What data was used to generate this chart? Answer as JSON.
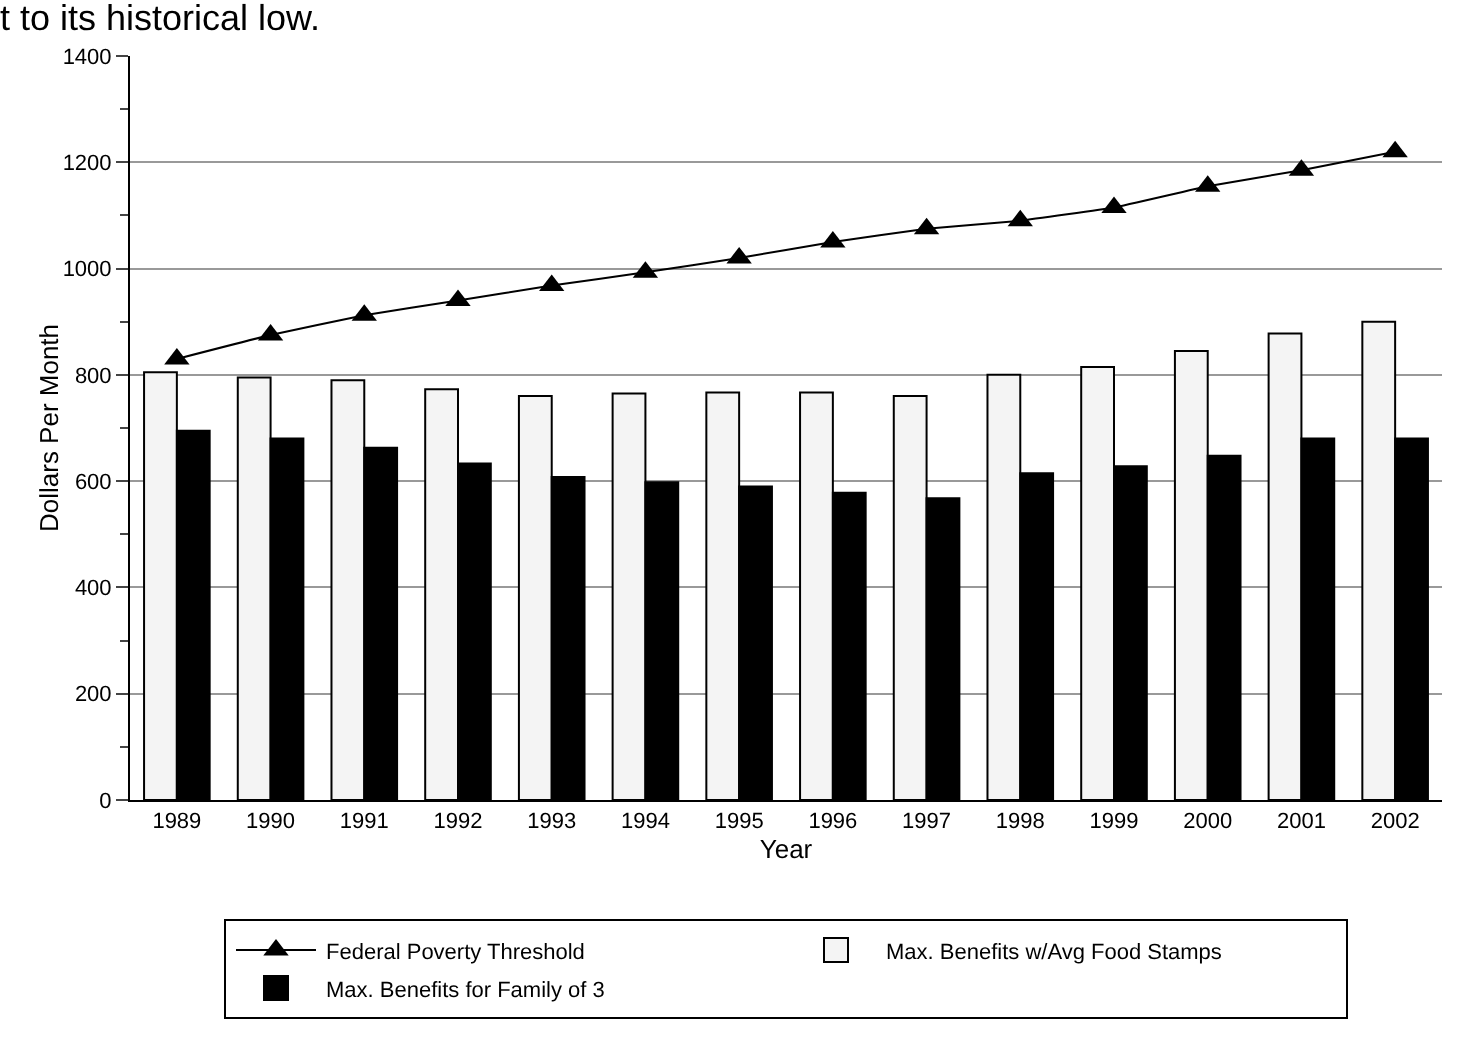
{
  "chart_data": {
    "type": "bar",
    "title": "t to its historical low.",
    "xlabel": "Year",
    "ylabel": "Dollars Per Month",
    "categories": [
      "1989",
      "1990",
      "1991",
      "1992",
      "1993",
      "1994",
      "1995",
      "1996",
      "1997",
      "1998",
      "1999",
      "2000",
      "2001",
      "2002"
    ],
    "series": [
      {
        "name": "Federal Poverty Threshold",
        "type": "line",
        "color": "#000000",
        "marker": "triangle",
        "values": [
          830,
          875,
          912,
          940,
          968,
          993,
          1020,
          1050,
          1075,
          1090,
          1115,
          1155,
          1185,
          1220
        ]
      },
      {
        "name": "Max. Benefits w/Avg Food Stamps",
        "color": "#f4f4f4",
        "values": [
          805,
          795,
          790,
          773,
          760,
          765,
          767,
          767,
          760,
          800,
          815,
          845,
          878,
          900
        ]
      },
      {
        "name": "Max. Benefits for Family of 3",
        "color": "#000000",
        "values": [
          695,
          680,
          663,
          633,
          608,
          598,
          590,
          578,
          568,
          615,
          628,
          648,
          680,
          680
        ]
      }
    ],
    "ylim": [
      0,
      1400
    ],
    "yticks": [
      0,
      200,
      400,
      600,
      800,
      1000,
      1200,
      1400
    ],
    "grid": "y",
    "legend": "bottom"
  }
}
